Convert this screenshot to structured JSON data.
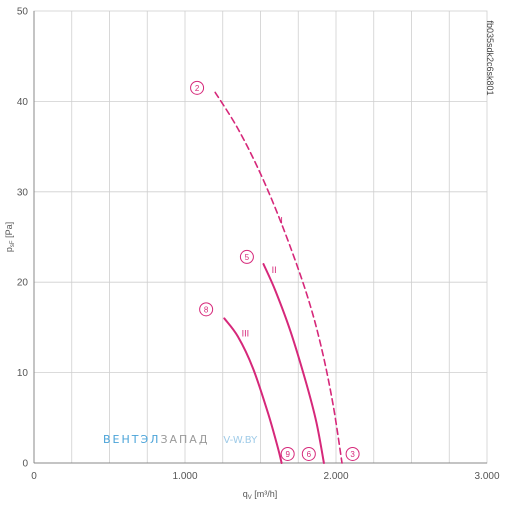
{
  "chart_data": {
    "type": "line",
    "xlabel_main": "q",
    "xlabel_sub": "V",
    "xlabel_unit": " [m³/h]",
    "ylabel_main": "p",
    "ylabel_sub": "sF",
    "ylabel_unit": " [Pa]",
    "xlim": [
      0,
      3000
    ],
    "ylim": [
      0,
      50
    ],
    "x_ticks": [
      0,
      1000,
      2000,
      3000
    ],
    "x_tick_labels": [
      "0",
      "1.000",
      "2.000",
      "3.000"
    ],
    "y_ticks": [
      0,
      10,
      20,
      30,
      40,
      50
    ],
    "y_tick_labels": [
      "0",
      "10",
      "20",
      "30",
      "40",
      "50"
    ],
    "x_grid_step": 250,
    "y_grid_step": 10,
    "grid": true,
    "series": [
      {
        "name": "I",
        "dashed": true,
        "points": [
          [
            1200,
            41.0
          ],
          [
            1350,
            37.0
          ],
          [
            1500,
            32.0
          ],
          [
            1650,
            26.0
          ],
          [
            1800,
            19.0
          ],
          [
            1900,
            13.0
          ],
          [
            1980,
            6.5
          ],
          [
            2040,
            0
          ]
        ]
      },
      {
        "name": "II",
        "dashed": false,
        "points": [
          [
            1520,
            22.0
          ],
          [
            1600,
            19.0
          ],
          [
            1700,
            14.5
          ],
          [
            1800,
            9.0
          ],
          [
            1870,
            4.5
          ],
          [
            1920,
            0
          ]
        ]
      },
      {
        "name": "III",
        "dashed": false,
        "points": [
          [
            1260,
            16.0
          ],
          [
            1350,
            14.0
          ],
          [
            1450,
            10.5
          ],
          [
            1550,
            5.5
          ],
          [
            1610,
            2.0
          ],
          [
            1640,
            0
          ]
        ]
      }
    ],
    "markers": [
      {
        "label": "2",
        "x": 1080,
        "y": 41.5
      },
      {
        "label": "5",
        "x": 1410,
        "y": 22.8
      },
      {
        "label": "8",
        "x": 1140,
        "y": 17.0
      },
      {
        "label": "9",
        "x": 1680,
        "y": 1.0
      },
      {
        "label": "6",
        "x": 1820,
        "y": 1.0
      },
      {
        "label": "3",
        "x": 2110,
        "y": 1.0
      }
    ],
    "curve_labels": [
      {
        "label": "I",
        "x": 1640,
        "y": 26.5
      },
      {
        "label": "II",
        "x": 1590,
        "y": 21.0
      },
      {
        "label": "III",
        "x": 1400,
        "y": 14.0
      }
    ],
    "colors": {
      "curve": "#d6287a",
      "grid": "#cfcfcf",
      "axis": "#888888"
    }
  },
  "watermark": {
    "part1": "ВЕНТЭЛ",
    "part2": "ЗАПАД",
    "part3": "V-W.BY",
    "color1": "#4aa3d8",
    "color2": "#9a9a9a",
    "color3": "#9fcbe8"
  },
  "code": "fb035sdk2c6sk801"
}
